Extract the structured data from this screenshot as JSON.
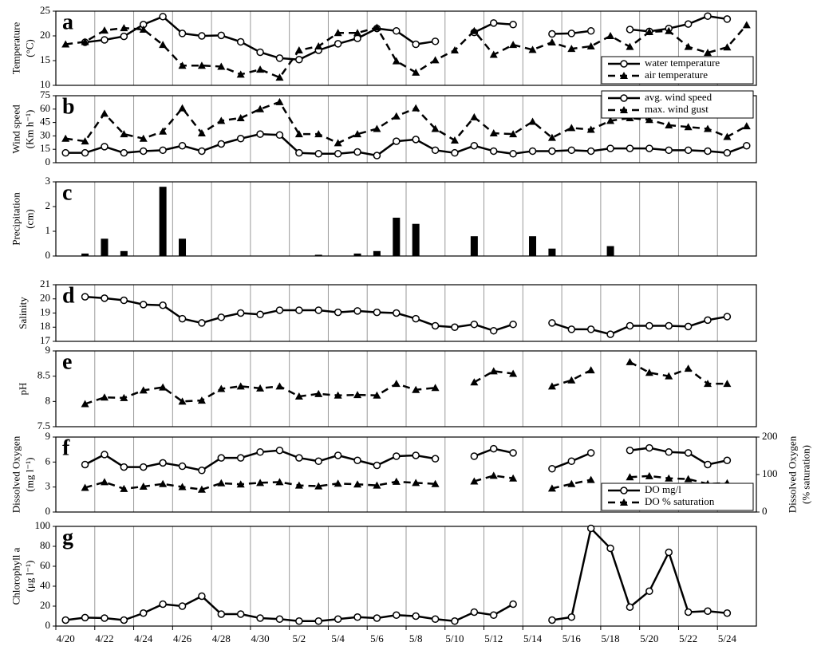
{
  "chart_data": [
    {
      "type": "line",
      "letter": "a",
      "ylabel": [
        "Temperature",
        "(°C)"
      ],
      "ylim": [
        10,
        25
      ],
      "yticks": [
        10,
        15,
        20,
        25
      ],
      "legend": "lower right",
      "series": [
        {
          "name": "water temperature",
          "color": "#000000",
          "line": "solid",
          "marker": "circle",
          "values": [
            null,
            18.7,
            19.2,
            19.9,
            22.3,
            23.9,
            20.5,
            20.0,
            20.1,
            18.8,
            16.7,
            15.5,
            15.2,
            17.1,
            18.4,
            19.5,
            21.5,
            21.0,
            18.3,
            18.9,
            null,
            20.7,
            22.6,
            22.3,
            null,
            20.4,
            20.5,
            21.0,
            null,
            21.3,
            20.9,
            21.5,
            22.4,
            24.0,
            23.4,
            null
          ]
        },
        {
          "name": "air temperature",
          "color": "#000000",
          "line": "dashed",
          "marker": "triangle",
          "values": [
            18.3,
            18.8,
            21.1,
            21.6,
            21.3,
            18.2,
            14.0,
            14.0,
            13.8,
            12.2,
            13.2,
            11.6,
            17.1,
            17.9,
            20.6,
            20.6,
            21.7,
            14.9,
            12.6,
            15.1,
            17.1,
            21.0,
            16.2,
            18.2,
            17.2,
            18.7,
            17.4,
            17.9,
            20.0,
            17.8,
            20.8,
            21.0,
            17.8,
            16.6,
            17.7,
            22.2
          ]
        }
      ]
    },
    {
      "type": "line",
      "letter": "b",
      "ylabel": [
        "Wind speed",
        "(Km h⁻¹)"
      ],
      "ylim": [
        0,
        75
      ],
      "yticks": [
        0,
        15,
        30,
        45,
        60,
        75
      ],
      "legend": "upper right",
      "series": [
        {
          "name": "avg. wind speed",
          "color": "#000000",
          "line": "solid",
          "marker": "circle",
          "values": [
            11,
            11,
            18,
            11,
            13,
            14,
            19,
            13,
            21,
            27,
            32,
            31,
            11,
            10,
            10,
            12,
            8,
            24,
            26,
            14,
            11,
            19,
            13,
            10,
            13,
            13,
            14,
            13,
            16,
            16,
            16,
            14,
            14,
            13,
            11,
            19
          ]
        },
        {
          "name": "max. wind gust",
          "color": "#000000",
          "line": "dashed",
          "marker": "triangle",
          "values": [
            27,
            24,
            55,
            32,
            27,
            35,
            61,
            33,
            47,
            50,
            60,
            68,
            32,
            32,
            22,
            32,
            38,
            52,
            61,
            38,
            25,
            51,
            33,
            32,
            46,
            28,
            39,
            37,
            47,
            50,
            48,
            42,
            40,
            38,
            29,
            41
          ]
        }
      ]
    },
    {
      "type": "bar",
      "letter": "c",
      "ylabel": [
        "Precipitation",
        "(cm)"
      ],
      "ylim": [
        0,
        3
      ],
      "yticks": [
        0,
        1,
        2,
        3
      ],
      "color": "#000000",
      "values": [
        0,
        0.1,
        0.7,
        0.2,
        0,
        2.8,
        0.7,
        0,
        0,
        0,
        0,
        0,
        0,
        0.05,
        0,
        0.1,
        0.2,
        1.55,
        1.3,
        0,
        0,
        0.8,
        0,
        0,
        0.8,
        0.3,
        0,
        0,
        0.4,
        0,
        0,
        0,
        0,
        0,
        0,
        0
      ]
    },
    {
      "type": "line",
      "letter": "d",
      "ylabel": [
        "Salinity"
      ],
      "ylim": [
        17,
        21
      ],
      "yticks": [
        17,
        18,
        19,
        20,
        21
      ],
      "series": [
        {
          "color": "#000000",
          "line": "solid",
          "marker": "circle",
          "values": [
            null,
            20.15,
            20.05,
            19.9,
            19.6,
            19.55,
            18.6,
            18.3,
            18.7,
            19.0,
            18.9,
            19.2,
            19.2,
            19.2,
            19.05,
            19.15,
            19.05,
            19.0,
            18.6,
            18.1,
            18.0,
            18.2,
            17.75,
            18.2,
            null,
            18.3,
            17.85,
            17.85,
            17.5,
            18.1,
            18.1,
            18.1,
            18.05,
            18.5,
            18.75,
            null
          ]
        }
      ]
    },
    {
      "type": "line",
      "letter": "e",
      "ylabel": [
        "pH"
      ],
      "ylim": [
        7.5,
        9
      ],
      "yticks": [
        7.5,
        8,
        8.5,
        9
      ],
      "series": [
        {
          "color": "#000000",
          "line": "dashed",
          "marker": "triangle",
          "values": [
            null,
            7.95,
            8.08,
            8.07,
            8.22,
            8.28,
            8.0,
            8.02,
            8.25,
            8.3,
            8.26,
            8.3,
            8.1,
            8.15,
            8.12,
            8.13,
            8.12,
            8.35,
            8.23,
            8.27,
            null,
            8.38,
            8.6,
            8.55,
            null,
            8.3,
            8.42,
            8.62,
            null,
            8.78,
            8.57,
            8.5,
            8.65,
            8.35,
            8.35,
            null
          ]
        }
      ]
    },
    {
      "type": "line",
      "letter": "f",
      "ylabel": [
        "Dissolved Oxygen",
        "(mg l⁻¹)"
      ],
      "y2label": [
        "Dissolved Oxygen",
        "(% saturation)"
      ],
      "ylim": [
        0,
        9
      ],
      "yticks": [
        0,
        3,
        6,
        9
      ],
      "y2lim": [
        0,
        200
      ],
      "y2ticks": [
        0,
        100,
        200
      ],
      "legend": "lower right",
      "series": [
        {
          "name": "DO mg/l",
          "color": "#000000",
          "line": "solid",
          "marker": "circle",
          "values": [
            null,
            5.7,
            6.9,
            5.4,
            5.4,
            5.9,
            5.5,
            5.0,
            6.5,
            6.5,
            7.2,
            7.4,
            6.5,
            6.1,
            6.8,
            6.2,
            5.6,
            6.7,
            6.8,
            6.4,
            null,
            6.7,
            7.6,
            7.1,
            null,
            5.2,
            6.1,
            7.1,
            null,
            7.4,
            7.7,
            7.2,
            7.1,
            5.7,
            6.2,
            null
          ]
        },
        {
          "name": "DO % saturation",
          "color": "#000000",
          "line": "dashed",
          "marker": "triangle",
          "axis": "y2",
          "values": [
            null,
            65,
            80,
            62,
            68,
            75,
            67,
            60,
            77,
            74,
            78,
            80,
            71,
            69,
            76,
            74,
            71,
            81,
            78,
            75,
            null,
            82,
            97,
            90,
            null,
            63,
            75,
            86,
            null,
            93,
            96,
            90,
            88,
            75,
            77,
            null
          ]
        }
      ]
    },
    {
      "type": "line",
      "letter": "g",
      "ylabel": [
        "Chlorophyll a",
        "(μg l⁻¹)"
      ],
      "ylim": [
        0,
        100
      ],
      "yticks": [
        0,
        20,
        40,
        60,
        80,
        100
      ],
      "categories": [
        "4/20",
        null,
        "4/22",
        null,
        "4/24",
        null,
        "4/26",
        null,
        "4/28",
        null,
        "4/30",
        null,
        "5/2",
        null,
        "5/4",
        null,
        "5/6",
        null,
        "5/8",
        null,
        "5/10",
        null,
        "5/12",
        null,
        "5/14",
        null,
        "5/16",
        null,
        "5/18",
        null,
        "5/20",
        null,
        "5/22",
        null,
        "5/24",
        null
      ],
      "series": [
        {
          "color": "#000000",
          "line": "solid",
          "marker": "circle",
          "values": [
            6,
            8.5,
            8,
            6,
            13,
            22,
            20,
            30,
            12,
            12,
            8,
            7,
            5,
            5,
            7,
            9,
            8,
            11,
            10,
            7,
            5,
            14,
            11,
            22,
            null,
            6,
            9,
            98,
            78,
            19,
            35,
            74,
            14,
            15,
            13,
            null
          ]
        }
      ]
    }
  ]
}
